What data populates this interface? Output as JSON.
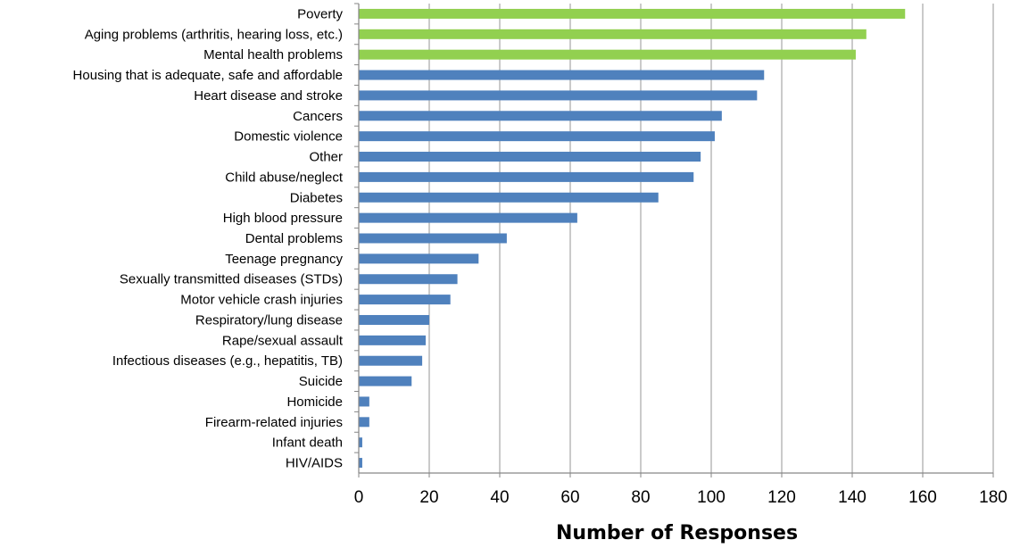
{
  "chart_data": {
    "type": "bar",
    "orientation": "horizontal",
    "title": "",
    "xlabel": "Number of Responses",
    "ylabel": "",
    "xlim": [
      0,
      180
    ],
    "xticks": [
      0,
      20,
      40,
      60,
      80,
      100,
      120,
      140,
      160,
      180
    ],
    "grid": "vertical major gridlines",
    "legend": "none",
    "categories": [
      "Poverty",
      "Aging problems (arthritis, hearing loss, etc.)",
      "Mental health problems",
      "Housing that is adequate, safe and affordable",
      "Heart disease and stroke",
      "Cancers",
      "Domestic violence",
      "Other",
      "Child abuse/neglect",
      "Diabetes",
      "High blood pressure",
      "Dental problems",
      "Teenage pregnancy",
      "Sexually transmitted diseases (STDs)",
      "Motor vehicle crash injuries",
      "Respiratory/lung disease",
      "Rape/sexual assault",
      "Infectious diseases (e.g., hepatitis, TB)",
      "Suicide",
      "Homicide",
      "Firearm-related injuries",
      "Infant death",
      "HIV/AIDS"
    ],
    "values": [
      155,
      144,
      141,
      115,
      113,
      103,
      101,
      97,
      95,
      85,
      62,
      42,
      34,
      28,
      26,
      20,
      19,
      18,
      15,
      3,
      3,
      1,
      1
    ],
    "highlighted_top": 3,
    "colors": {
      "highlight": "#92D050",
      "default": "#4F81BD",
      "grid": "#A6A6A6",
      "axis": "#868686"
    }
  }
}
